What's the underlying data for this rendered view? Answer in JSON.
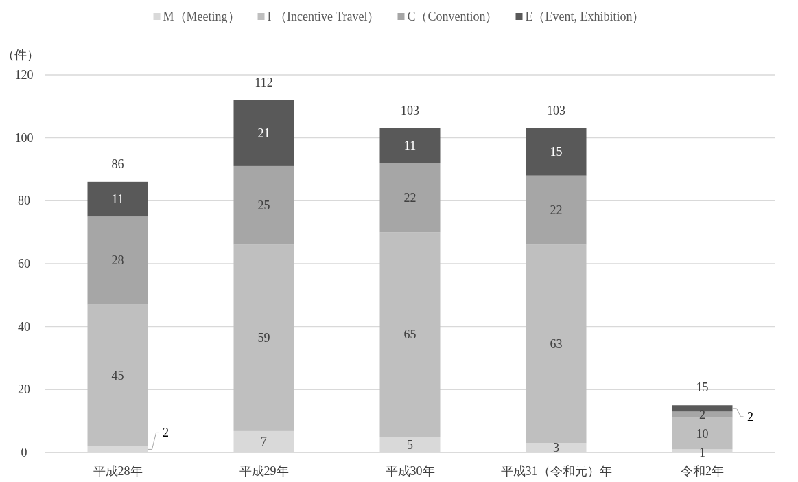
{
  "chart_data": {
    "type": "bar",
    "stacked": true,
    "ylabel": "（件）",
    "categories": [
      "平成28年",
      "平成29年",
      "平成30年",
      "平成31（令和元）年",
      "令和2年"
    ],
    "series": [
      {
        "name": "M（Meeting）",
        "color": "#d9d9d9",
        "values": [
          2,
          7,
          5,
          3,
          1
        ]
      },
      {
        "name": "I （Incentive Travel）",
        "color": "#bfbfbf",
        "values": [
          45,
          59,
          65,
          63,
          10
        ]
      },
      {
        "name": "C（Convention）",
        "color": "#a6a6a6",
        "values": [
          28,
          25,
          22,
          22,
          2
        ]
      },
      {
        "name": "E（Event, Exhibition）",
        "color": "#595959",
        "values": [
          11,
          21,
          11,
          15,
          2
        ]
      }
    ],
    "totals": [
      "86",
      "112",
      "103",
      "103",
      "15"
    ],
    "data_labels": true,
    "ylim": [
      0,
      120
    ],
    "yticks": [
      0,
      20,
      40,
      60,
      80,
      100,
      120
    ],
    "grid": "y",
    "legend": "top"
  }
}
